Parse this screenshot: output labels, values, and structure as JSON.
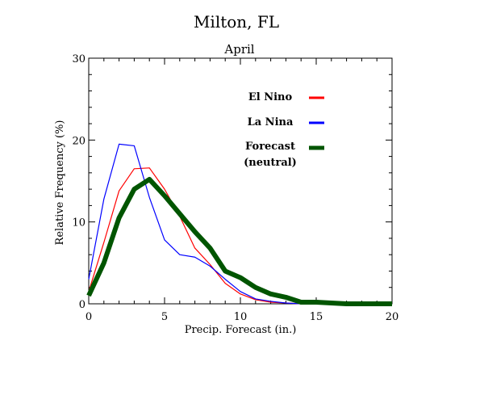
{
  "chart_data": {
    "type": "line",
    "title": "Milton, FL",
    "subtitle": "April",
    "xlabel": "Precip. Forecast (in.)",
    "ylabel": "Relative Frequency (%)",
    "xlim": [
      0,
      20
    ],
    "ylim": [
      0,
      30
    ],
    "xticks": [
      0,
      5,
      10,
      15,
      20
    ],
    "yticks": [
      0,
      10,
      20,
      30
    ],
    "grid": false,
    "legend_position": "top-right",
    "x": [
      0,
      1,
      2,
      3,
      4,
      5,
      6,
      7,
      8,
      9,
      10,
      11,
      12,
      13,
      14,
      15,
      16,
      17,
      18,
      19,
      20
    ],
    "series": [
      {
        "name": "El Nino",
        "color": "#ff0000",
        "values": [
          1.5,
          7.5,
          13.8,
          16.5,
          16.6,
          14.0,
          10.7,
          6.8,
          4.8,
          2.5,
          1.2,
          0.5,
          0.2,
          0.1,
          0.0,
          0.0,
          0.0,
          0.0,
          0.0,
          0.0,
          0.0
        ]
      },
      {
        "name": "La Nina",
        "color": "#0000ff",
        "values": [
          3.0,
          12.8,
          19.5,
          19.3,
          13.0,
          7.8,
          6.0,
          5.7,
          4.6,
          3.0,
          1.5,
          0.6,
          0.3,
          0.1,
          0.0,
          0.0,
          0.0,
          0.0,
          0.0,
          0.0,
          0.0
        ]
      },
      {
        "name": "Forecast\n(neutral)",
        "color": "#005500",
        "values": [
          1.0,
          5.0,
          10.5,
          14.0,
          15.2,
          13.2,
          11.0,
          8.8,
          6.8,
          4.0,
          3.2,
          2.0,
          1.2,
          0.8,
          0.2,
          0.2,
          0.1,
          0.0,
          0.0,
          0.0,
          0.0
        ]
      }
    ]
  }
}
